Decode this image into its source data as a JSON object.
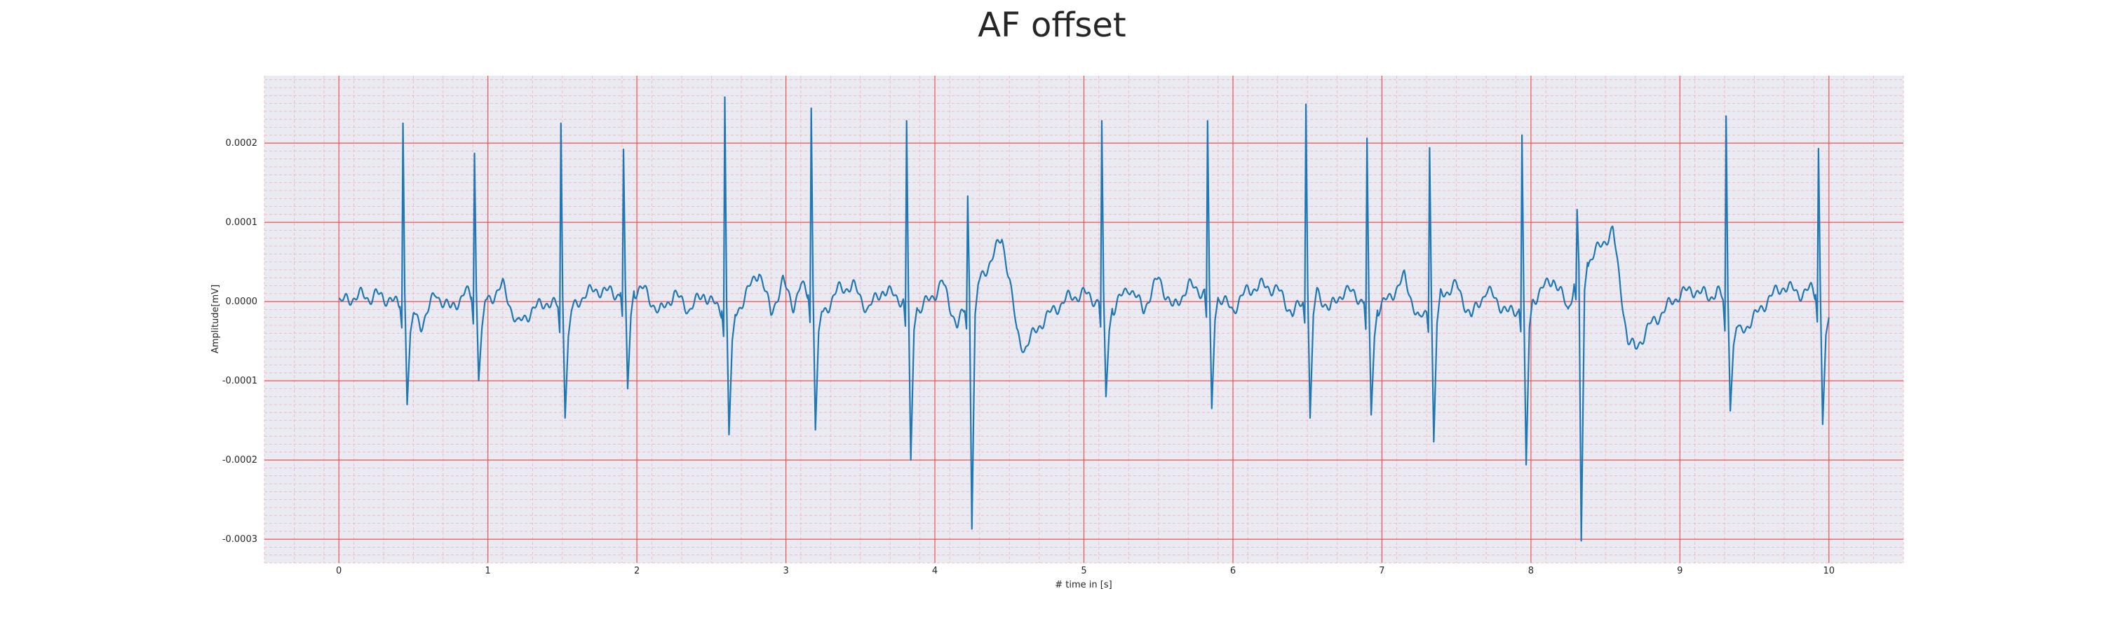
{
  "chart_data": {
    "type": "line",
    "title": "AF offset",
    "xlabel": "# time in [s]",
    "ylabel": "Amplitude[mV]",
    "xlim": [
      -0.5,
      10.5
    ],
    "ylim": [
      -0.00033,
      0.000285
    ],
    "x_ticks": [
      0,
      1,
      2,
      3,
      4,
      5,
      6,
      7,
      8,
      9,
      10
    ],
    "x_tick_labels": [
      "0",
      "1",
      "2",
      "3",
      "4",
      "5",
      "6",
      "7",
      "8",
      "9",
      "10"
    ],
    "y_ticks": [
      -0.0003,
      -0.0002,
      -0.0001,
      0.0,
      0.0001,
      0.0002
    ],
    "y_tick_labels": [
      "-0.0003",
      "-0.0002",
      "-0.0001",
      "0.0000",
      "0.0001",
      "0.0002"
    ],
    "grid": {
      "major": true,
      "minor": true,
      "major_color": "#f05050",
      "minor_color": "#f2b3b8"
    },
    "background_color": "#eaeaf2",
    "series": [
      {
        "color": "#1f77b4",
        "baseline": [
          [
            0.0,
            0.0
          ],
          [
            0.01,
            -3e-06
          ],
          [
            0.05,
            3e-06
          ],
          [
            0.1,
            5e-06
          ],
          [
            0.15,
            8e-06
          ],
          [
            0.2,
            4e-06
          ],
          [
            0.25,
            1e-05
          ],
          [
            0.3,
            2e-06
          ],
          [
            0.35,
            6e-06
          ],
          [
            0.4,
            -8e-06
          ],
          [
            0.45,
            0.0
          ],
          [
            0.55,
            -3e-05
          ],
          [
            0.65,
            1e-05
          ],
          [
            0.75,
            -1e-05
          ],
          [
            0.85,
            1.2e-05
          ],
          [
            0.95,
            -5e-06
          ],
          [
            1.05,
            1e-05
          ],
          [
            1.1,
            2e-05
          ],
          [
            1.2,
            -3e-05
          ],
          [
            1.3,
            -1e-05
          ],
          [
            1.4,
            0.0
          ],
          [
            1.55,
            -1.5e-05
          ],
          [
            1.65,
            1e-05
          ],
          [
            1.75,
            1.5e-05
          ],
          [
            1.85,
            1e-05
          ],
          [
            2.05,
            1.5e-05
          ],
          [
            2.15,
            -1.5e-05
          ],
          [
            2.25,
            1e-05
          ],
          [
            2.35,
            -1e-05
          ],
          [
            2.45,
            1e-05
          ],
          [
            2.55,
            -1e-05
          ],
          [
            2.65,
            -2e-05
          ],
          [
            2.75,
            1.5e-05
          ],
          [
            2.82,
            4e-05
          ],
          [
            2.9,
            -1.5e-05
          ],
          [
            2.98,
            2.5e-05
          ],
          [
            3.05,
            -5e-06
          ],
          [
            3.1,
            2e-05
          ],
          [
            3.25,
            -1.5e-05
          ],
          [
            3.35,
            1.5e-05
          ],
          [
            3.45,
            2e-05
          ],
          [
            3.55,
            -1e-05
          ],
          [
            3.65,
            1.5e-05
          ],
          [
            3.75,
            5e-06
          ],
          [
            3.9,
            -1e-05
          ],
          [
            4.0,
            1e-05
          ],
          [
            4.05,
            2.5e-05
          ],
          [
            4.1,
            -5e-06
          ],
          [
            4.15,
            -3e-05
          ],
          [
            4.45,
            8e-05
          ],
          [
            4.5,
            3e-05
          ],
          [
            4.55,
            -4e-05
          ],
          [
            4.6,
            -6e-05
          ],
          [
            4.7,
            -3e-05
          ],
          [
            4.8,
            -1e-05
          ],
          [
            4.9,
            5e-06
          ],
          [
            5.0,
            1e-05
          ],
          [
            5.2,
            -1e-05
          ],
          [
            5.3,
            2e-05
          ],
          [
            5.4,
            -1e-05
          ],
          [
            5.5,
            3e-05
          ],
          [
            5.6,
            -1e-05
          ],
          [
            5.7,
            2e-05
          ],
          [
            5.9,
            5e-06
          ],
          [
            6.0,
            -1e-05
          ],
          [
            6.1,
            1.5e-05
          ],
          [
            6.2,
            2e-05
          ],
          [
            6.3,
            1.5e-05
          ],
          [
            6.4,
            -1.5e-05
          ],
          [
            6.55,
            1.5e-05
          ],
          [
            6.65,
            -1e-05
          ],
          [
            6.75,
            1.5e-05
          ],
          [
            6.85,
            5e-06
          ],
          [
            6.95,
            -1.5e-05
          ],
          [
            7.05,
            5e-06
          ],
          [
            7.15,
            3e-05
          ],
          [
            7.25,
            -2.5e-05
          ],
          [
            7.4,
            1e-05
          ],
          [
            7.5,
            2e-05
          ],
          [
            7.6,
            -2e-05
          ],
          [
            7.7,
            1.5e-05
          ],
          [
            7.85,
            -1.5e-05
          ],
          [
            7.98,
            -5e-06
          ],
          [
            8.05,
            1e-05
          ],
          [
            8.15,
            3e-05
          ],
          [
            8.25,
            -1e-05
          ],
          [
            8.3,
            3e-05
          ],
          [
            8.55,
            9e-05
          ],
          [
            8.6,
            2e-05
          ],
          [
            8.65,
            -5e-05
          ],
          [
            8.7,
            -6e-05
          ],
          [
            8.8,
            -3e-05
          ],
          [
            8.9,
            -1e-05
          ],
          [
            9.0,
            1e-05
          ],
          [
            9.1,
            1.5e-05
          ],
          [
            9.2,
            5e-06
          ],
          [
            9.25,
            1.5e-05
          ],
          [
            9.4,
            -4e-05
          ],
          [
            9.5,
            -2e-05
          ],
          [
            9.6,
            5e-06
          ],
          [
            9.7,
            2e-05
          ],
          [
            9.8,
            1e-05
          ],
          [
            9.88,
            1.5e-05
          ],
          [
            9.95,
            0.0
          ],
          [
            10.0,
            -2e-05
          ]
        ],
        "spikes": [
          {
            "t": 0.43,
            "up": 0.000225,
            "down": -0.00013
          },
          {
            "t": 0.91,
            "up": 0.000187,
            "down": -0.0001
          },
          {
            "t": 1.49,
            "up": 0.000225,
            "down": -0.000147
          },
          {
            "t": 1.91,
            "up": 0.000192,
            "down": -0.00011
          },
          {
            "t": 2.59,
            "up": 0.000258,
            "down": -0.000168
          },
          {
            "t": 3.17,
            "up": 0.000244,
            "down": -0.000162
          },
          {
            "t": 3.81,
            "up": 0.000228,
            "down": -0.0002
          },
          {
            "t": 4.22,
            "up": 0.000133,
            "down": -0.000287
          },
          {
            "t": 5.12,
            "up": 0.000228,
            "down": -0.00012
          },
          {
            "t": 5.83,
            "up": 0.000228,
            "down": -0.000135
          },
          {
            "t": 6.49,
            "up": 0.000249,
            "down": -0.000147
          },
          {
            "t": 6.9,
            "up": 0.000206,
            "down": -0.000143
          },
          {
            "t": 7.32,
            "up": 0.000194,
            "down": -0.000177
          },
          {
            "t": 7.94,
            "up": 0.00021,
            "down": -0.000206
          },
          {
            "t": 8.31,
            "up": 0.000116,
            "down": -0.000302
          },
          {
            "t": 9.31,
            "up": 0.000234,
            "down": -0.000138
          },
          {
            "t": 9.93,
            "up": 0.000193,
            "down": -0.000155
          }
        ]
      }
    ]
  }
}
